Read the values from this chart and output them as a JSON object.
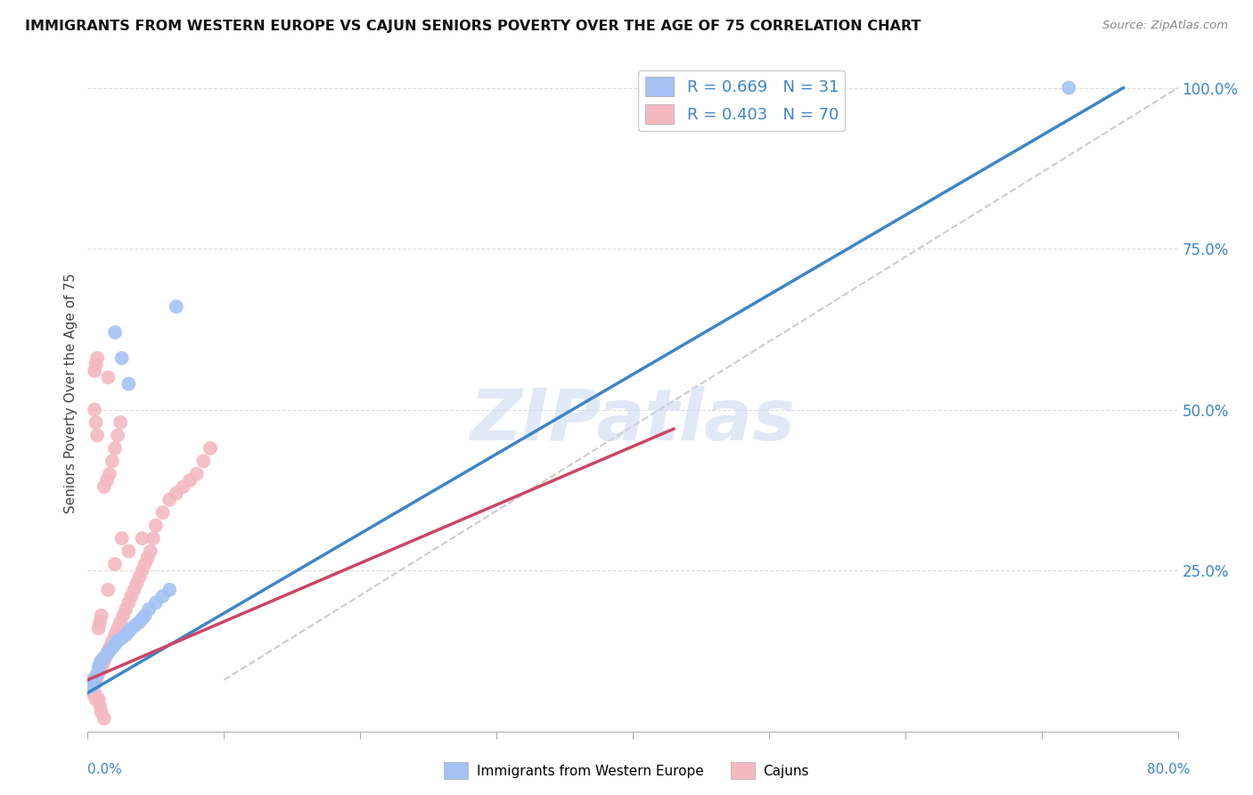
{
  "title": "IMMIGRANTS FROM WESTERN EUROPE VS CAJUN SENIORS POVERTY OVER THE AGE OF 75 CORRELATION CHART",
  "source": "Source: ZipAtlas.com",
  "ylabel": "Seniors Poverty Over the Age of 75",
  "xmin": 0.0,
  "xmax": 0.8,
  "ymin": 0.0,
  "ymax": 1.05,
  "yticks": [
    0.25,
    0.5,
    0.75,
    1.0
  ],
  "ytick_labels": [
    "25.0%",
    "50.0%",
    "75.0%",
    "100.0%"
  ],
  "legend_r1": "R = 0.669   N = 31",
  "legend_r2": "R = 0.403   N = 70",
  "legend_label1": "Immigrants from Western Europe",
  "legend_label2": "Cajuns",
  "blue_color": "#a4c2f4",
  "pink_color": "#f4b8c1",
  "blue_line_color": "#3d85c8",
  "pink_line_color": "#cc4466",
  "ref_line_color": "#cccccc",
  "watermark_color": "#cdd9f0",
  "watermark": "ZIPatlas",
  "blue_scatter_x": [
    0.003,
    0.004,
    0.005,
    0.006,
    0.007,
    0.008,
    0.009,
    0.01,
    0.012,
    0.014,
    0.016,
    0.018,
    0.02,
    0.022,
    0.025,
    0.028,
    0.03,
    0.032,
    0.035,
    0.038,
    0.04,
    0.042,
    0.045,
    0.05,
    0.055,
    0.06,
    0.02,
    0.025,
    0.03,
    0.065,
    0.72
  ],
  "blue_scatter_y": [
    0.07,
    0.075,
    0.08,
    0.085,
    0.09,
    0.1,
    0.105,
    0.11,
    0.115,
    0.12,
    0.125,
    0.13,
    0.135,
    0.14,
    0.145,
    0.15,
    0.155,
    0.16,
    0.165,
    0.17,
    0.175,
    0.18,
    0.19,
    0.2,
    0.21,
    0.22,
    0.62,
    0.58,
    0.54,
    0.66,
    1.0
  ],
  "pink_scatter_x": [
    0.002,
    0.003,
    0.004,
    0.005,
    0.006,
    0.007,
    0.008,
    0.009,
    0.01,
    0.011,
    0.012,
    0.013,
    0.014,
    0.015,
    0.016,
    0.018,
    0.02,
    0.022,
    0.024,
    0.026,
    0.028,
    0.03,
    0.032,
    0.034,
    0.036,
    0.038,
    0.04,
    0.042,
    0.044,
    0.046,
    0.048,
    0.05,
    0.055,
    0.06,
    0.065,
    0.07,
    0.075,
    0.08,
    0.085,
    0.09,
    0.012,
    0.014,
    0.016,
    0.018,
    0.02,
    0.022,
    0.024,
    0.005,
    0.006,
    0.007,
    0.008,
    0.009,
    0.01,
    0.015,
    0.02,
    0.025,
    0.03,
    0.04,
    0.015,
    0.005,
    0.006,
    0.007,
    0.008,
    0.009,
    0.01,
    0.012,
    0.003,
    0.004,
    0.005,
    0.006
  ],
  "pink_scatter_y": [
    0.06,
    0.065,
    0.07,
    0.075,
    0.08,
    0.085,
    0.09,
    0.095,
    0.1,
    0.105,
    0.11,
    0.115,
    0.12,
    0.125,
    0.13,
    0.14,
    0.15,
    0.16,
    0.17,
    0.18,
    0.19,
    0.2,
    0.21,
    0.22,
    0.23,
    0.24,
    0.25,
    0.26,
    0.27,
    0.28,
    0.3,
    0.32,
    0.34,
    0.36,
    0.37,
    0.38,
    0.39,
    0.4,
    0.42,
    0.44,
    0.38,
    0.39,
    0.4,
    0.42,
    0.44,
    0.46,
    0.48,
    0.56,
    0.57,
    0.58,
    0.16,
    0.17,
    0.18,
    0.22,
    0.26,
    0.3,
    0.28,
    0.3,
    0.55,
    0.5,
    0.48,
    0.46,
    0.05,
    0.04,
    0.03,
    0.02,
    0.08,
    0.07,
    0.06,
    0.05
  ],
  "blue_line_x": [
    0.0,
    0.76
  ],
  "blue_line_y": [
    0.06,
    1.0
  ],
  "pink_line_x": [
    0.0,
    0.43
  ],
  "pink_line_y": [
    0.08,
    0.47
  ],
  "ref_line_x": [
    0.1,
    0.8
  ],
  "ref_line_y": [
    0.08,
    1.0
  ]
}
